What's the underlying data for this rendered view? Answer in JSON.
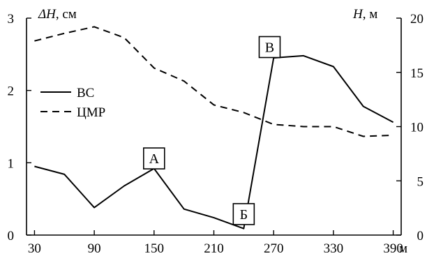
{
  "chart_data": {
    "type": "line",
    "x_unit": "м",
    "x_ticks": [
      30,
      90,
      150,
      210,
      270,
      330,
      390
    ],
    "xlim": [
      22,
      398
    ],
    "y_left": {
      "label_symbol": "ΔH",
      "label_unit": ", см",
      "lim": [
        0,
        3
      ],
      "ticks": [
        0,
        1,
        2,
        3
      ]
    },
    "y_right": {
      "label_symbol": "H",
      "label_unit": ", м",
      "lim": [
        0,
        20
      ],
      "ticks": [
        0,
        5,
        10,
        15,
        20
      ]
    },
    "series": [
      {
        "name": "ВС",
        "axis": "left",
        "style": "solid",
        "x": [
          30,
          60,
          90,
          120,
          150,
          180,
          210,
          240,
          270,
          300,
          330,
          360,
          390
        ],
        "y": [
          0.95,
          0.84,
          0.38,
          0.68,
          0.92,
          0.36,
          0.24,
          0.09,
          2.45,
          2.48,
          2.33,
          1.78,
          1.56
        ]
      },
      {
        "name": "ЦМР",
        "axis": "right",
        "style": "dashed",
        "x": [
          30,
          60,
          90,
          120,
          150,
          180,
          210,
          240,
          270,
          300,
          330,
          360,
          390
        ],
        "y": [
          17.9,
          18.6,
          19.2,
          18.2,
          15.4,
          14.2,
          12.0,
          11.3,
          10.2,
          10.0,
          10.0,
          9.1,
          9.2
        ]
      }
    ],
    "annotations": [
      {
        "text": "А",
        "x": 150,
        "y": 1.06
      },
      {
        "text": "Б",
        "x": 240,
        "y": 0.29
      },
      {
        "text": "В",
        "x": 266,
        "y": 2.6
      }
    ],
    "legend": {
      "placement": "left-middle"
    },
    "grid": false
  }
}
